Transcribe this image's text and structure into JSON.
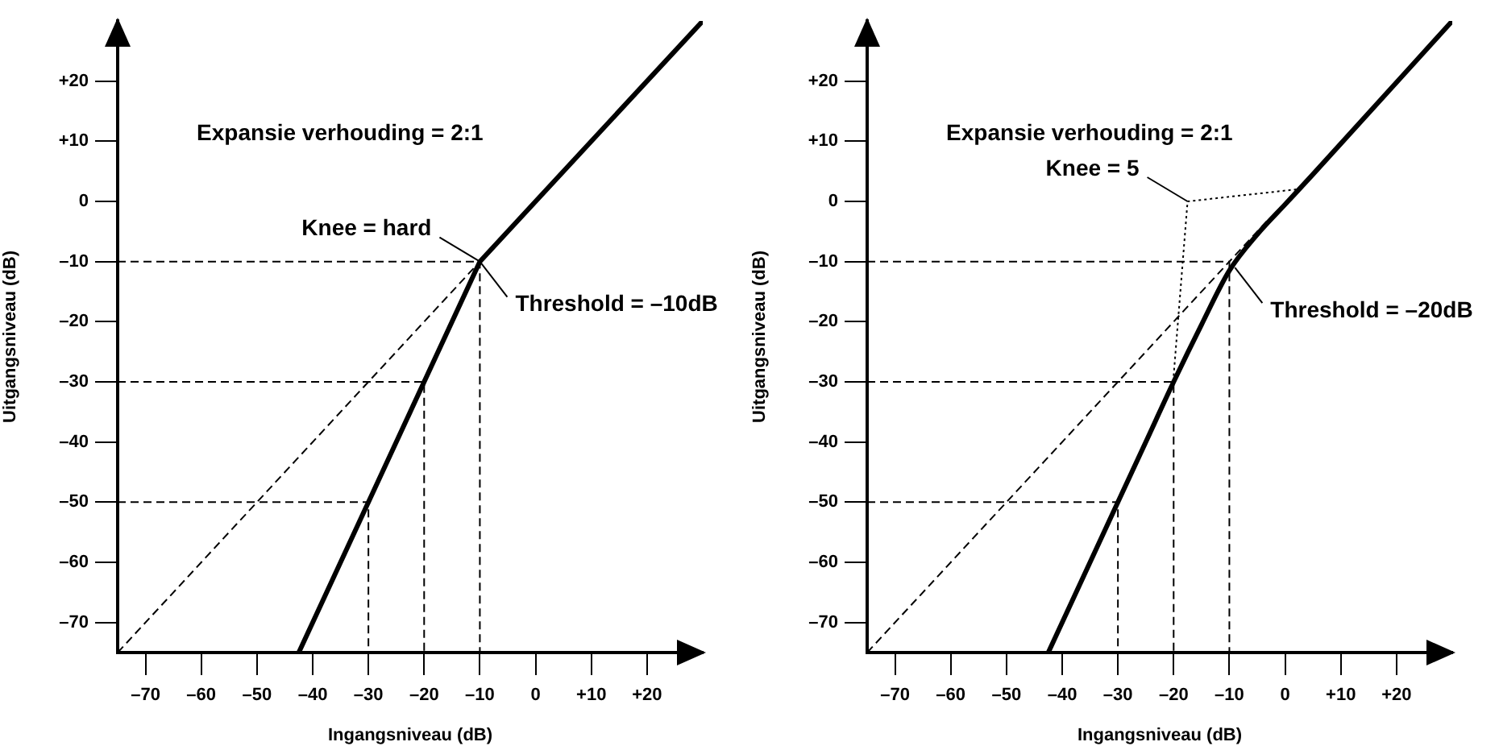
{
  "chart_data": [
    {
      "type": "line",
      "xlabel": "Ingangsniveau (dB)",
      "ylabel": "Uitgangsniveau (dB)",
      "xlim": [
        -75,
        30
      ],
      "ylim": [
        -75,
        30
      ],
      "xticks": [
        {
          "value": -70,
          "label": "–70"
        },
        {
          "value": -60,
          "label": "–60"
        },
        {
          "value": -50,
          "label": "–50"
        },
        {
          "value": -40,
          "label": "–40"
        },
        {
          "value": -30,
          "label": "–30"
        },
        {
          "value": -20,
          "label": "–20"
        },
        {
          "value": -10,
          "label": "–10"
        },
        0,
        {
          "value": 10,
          "label": "+10"
        },
        {
          "value": 20,
          "label": "+20"
        }
      ],
      "yticks": [
        {
          "value": -70,
          "label": "–70"
        },
        {
          "value": -60,
          "label": "–60"
        },
        {
          "value": -50,
          "label": "–50"
        },
        {
          "value": -40,
          "label": "–40"
        },
        {
          "value": -30,
          "label": "–30"
        },
        {
          "value": -20,
          "label": "–20"
        },
        {
          "value": -10,
          "label": "–10"
        },
        0,
        {
          "value": 10,
          "label": "+10"
        },
        {
          "value": 20,
          "label": "+20"
        }
      ],
      "series": [
        {
          "color": "#000000",
          "line_style": "dashed",
          "x": [
            -75,
            -10
          ],
          "values": [
            -75,
            -10
          ]
        },
        {
          "color": "#000000",
          "line_style": "dashed",
          "x": [
            -75,
            -10,
            -10
          ],
          "values": [
            -10,
            -10,
            -75
          ]
        },
        {
          "color": "#000000",
          "line_style": "dashed",
          "x": [
            -75,
            -20,
            -20
          ],
          "values": [
            -30,
            -30,
            -75
          ]
        },
        {
          "color": "#000000",
          "line_style": "dashed",
          "x": [
            -75,
            -30,
            -30
          ],
          "values": [
            -50,
            -50,
            -75
          ]
        },
        {
          "color": "#000000",
          "line_style": "solid",
          "x": [
            -42.5,
            -10,
            30
          ],
          "values": [
            -75,
            -10,
            30
          ]
        }
      ],
      "annotations": [
        "Expansie verhouding = 2:1",
        {
          "text": "Knee = hard",
          "x": -10,
          "y": -10
        },
        {
          "text": "Threshold = –10dB",
          "x": -10,
          "y": -10
        }
      ],
      "grid": false,
      "legend": false,
      "marker": "none"
    },
    {
      "type": "line",
      "xlabel": "Ingangsniveau (dB)",
      "ylabel": "Uitgangsniveau (dB)",
      "xlim": [
        -75,
        30
      ],
      "ylim": [
        -75,
        30
      ],
      "xticks": [
        {
          "value": -70,
          "label": "–70"
        },
        {
          "value": -60,
          "label": "–60"
        },
        {
          "value": -50,
          "label": "–50"
        },
        {
          "value": -40,
          "label": "–40"
        },
        {
          "value": -30,
          "label": "–30"
        },
        {
          "value": -20,
          "label": "–20"
        },
        {
          "value": -10,
          "label": "–10"
        },
        0,
        {
          "value": 10,
          "label": "+10"
        },
        {
          "value": 20,
          "label": "+20"
        }
      ],
      "yticks": [
        {
          "value": -70,
          "label": "–70"
        },
        {
          "value": -60,
          "label": "–60"
        },
        {
          "value": -50,
          "label": "–50"
        },
        {
          "value": -40,
          "label": "–40"
        },
        {
          "value": -30,
          "label": "–30"
        },
        {
          "value": -20,
          "label": "–20"
        },
        {
          "value": -10,
          "label": "–10"
        },
        0,
        {
          "value": 10,
          "label": "+10"
        },
        {
          "value": 20,
          "label": "+20"
        }
      ],
      "series": [
        {
          "color": "#000000",
          "line_style": "dashed",
          "x": [
            -75,
            -3
          ],
          "values": [
            -75,
            -3
          ]
        },
        {
          "color": "#000000",
          "line_style": "dashed",
          "x": [
            -75,
            -10,
            -10
          ],
          "values": [
            -10,
            -10,
            -75
          ]
        },
        {
          "color": "#000000",
          "line_style": "dashed",
          "x": [
            -75,
            -20,
            -20
          ],
          "values": [
            -30,
            -30,
            -75
          ]
        },
        {
          "color": "#000000",
          "line_style": "dashed",
          "x": [
            -75,
            -30,
            -30
          ],
          "values": [
            -50,
            -50,
            -75
          ]
        },
        {
          "color": "#000000",
          "line_style": "dotted",
          "x": [
            -20,
            -17.5,
            2
          ],
          "values": [
            -29,
            0,
            2
          ]
        },
        {
          "color": "#000000",
          "line_style": "solid",
          "x": [
            -42.5,
            -30,
            -25,
            -20,
            -15,
            -10,
            -5,
            0,
            5,
            30
          ],
          "values": [
            -75,
            -50,
            -40,
            -30,
            -20.5,
            -11.5,
            -5.5,
            -0.5,
            4.5,
            30
          ]
        }
      ],
      "annotations": [
        "Expansie verhouding = 2:1",
        {
          "text": "Knee = 5",
          "x": -17.5,
          "y": 0
        },
        {
          "text": "Threshold = –20dB",
          "x": -9,
          "y": -11
        }
      ],
      "grid": false,
      "legend": false,
      "marker": "none"
    }
  ]
}
